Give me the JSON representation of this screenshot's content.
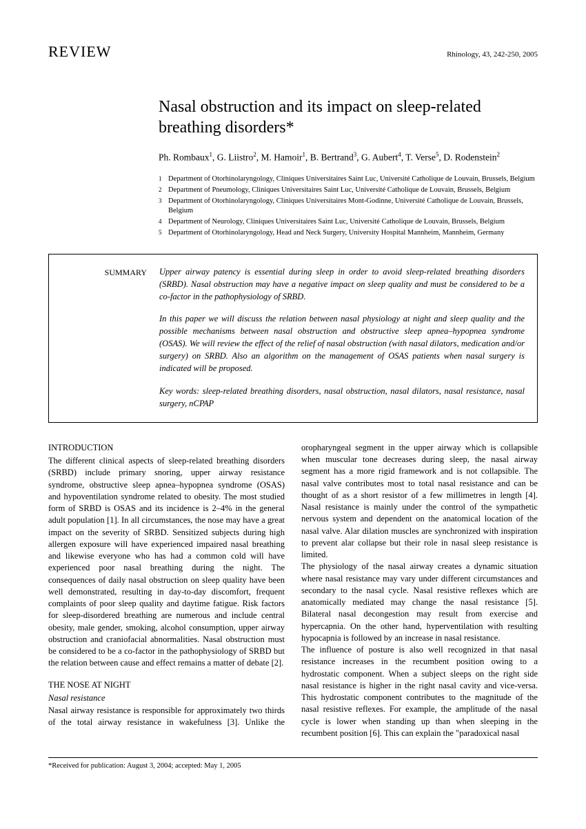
{
  "header": {
    "review_label": "REVIEW",
    "journal_ref": "Rhinology, 43, 242-250, 2005"
  },
  "title": "Nasal obstruction and its impact on sleep-related breathing disorders*",
  "authors_html": "Ph. Rombaux<sup>1</sup>, G. Liistro<sup>2</sup>, M. Hamoir<sup>1</sup>, B. Bertrand<sup>3</sup>, G. Aubert<sup>4</sup>, T. Verse<sup>5</sup>, D. Rodenstein<sup>2</sup>",
  "affiliations": [
    {
      "n": "1",
      "text": "Department of Otorhinolaryngology, Cliniques Universitaires Saint Luc, Université Catholique de Louvain, Brussels, Belgium"
    },
    {
      "n": "2",
      "text": "Department of Pneumology, Cliniques Universitaires Saint Luc, Université Catholique de Louvain, Brussels, Belgium"
    },
    {
      "n": "3",
      "text": "Department of Otorhinolaryngology, Cliniques Universitaires Mont-Godinne, Université Catholique de Louvain, Brussels, Belgium"
    },
    {
      "n": "4",
      "text": "Department of Neurology, Cliniques Universitaires Saint Luc, Université Catholique de Louvain, Brussels, Belgium"
    },
    {
      "n": "5",
      "text": "Department of Otorhinolaryngology, Head and Neck Surgery, University Hospital Mannheim, Mannheim, Germany"
    }
  ],
  "summary": {
    "label": "SUMMARY",
    "p1": "Upper airway patency is essential during sleep in order to avoid sleep-related breathing disorders (SRBD). Nasal obstruction may have a negative impact on sleep quality and must be considered to be a co-factor in the pathophysiology of SRBD.",
    "p2": "In this paper we will discuss the relation between nasal physiology at night and sleep quality and the possible mechanisms between nasal obstruction and obstructive sleep apnea–hypopnea syndrome (OSAS). We will review the effect of the relief of nasal obstruction (with nasal dilators, medication and/or surgery) on SRBD. Also an algorithm on the management of OSAS patients when nasal surgery is indicated will be proposed.",
    "keywords": "Key words: sleep-related breathing disorders, nasal obstruction, nasal dilators, nasal resistance, nasal surgery, nCPAP"
  },
  "sections": {
    "intro_head": "INTRODUCTION",
    "intro_body": "The different clinical aspects of sleep-related breathing disorders (SRBD) include primary snoring, upper airway resistance syndrome, obstructive sleep apnea–hypopnea syndrome (OSAS) and hypoventilation syndrome related to obesity. The most studied form of SRBD is OSAS and its incidence is 2–4% in the general adult population [1]. In all circumstances, the nose may have a great impact on the severity of SRBD. Sensitized subjects during high allergen exposure will have experienced impaired nasal breathing and likewise everyone who has had a common cold will have experienced poor nasal breathing during the night. The consequences of daily nasal obstruction on sleep quality have been well demonstrated, resulting in day-to-day discomfort, frequent complaints of poor sleep quality and daytime fatigue. Risk factors for sleep-disordered breathing are numerous and include central obesity, male gender, smoking, alcohol consumption, upper airway obstruction and craniofacial abnormalities. Nasal obstruction must be considered to be a co-factor in the pathophysiology of SRBD but the relation between cause and effect remains a matter of debate [2].",
    "nose_head": "THE NOSE AT NIGHT",
    "nasal_sub": "Nasal resistance",
    "nasal_body": "Nasal airway resistance is responsible for approximately two thirds of the total airway resistance in wakefulness [3]. Unlike the oropharyngeal segment in the upper airway which is collapsible when muscular tone decreases during sleep, the nasal airway segment has a more rigid framework and is not collapsible. The nasal valve contributes most to total nasal resistance and can be thought of as a short resistor of a few millimetres in length [4]. Nasal resistance is mainly under the control of the sympathetic nervous system and dependent on the anatomical location of the nasal valve. Alar dilation muscles are synchronized with inspiration to prevent alar collapse but their role in nasal sleep resistance is limited.",
    "phys_body": "The physiology of the nasal airway creates a dynamic situation where nasal resistance may vary under different circumstances and secondary to the nasal cycle. Nasal resistive reflexes which are anatomically mediated may change the nasal resistance [5]. Bilateral nasal decongestion may result from exercise and hypercapnia. On the other hand, hyperventilation with resulting hypocapnia is followed by an increase in nasal resistance.",
    "posture_body": "The influence of posture is also well recognized in that nasal resistance increases in the recumbent position owing to a hydrostatic component. When a subject sleeps on the right side nasal resistance is higher in the right nasal cavity and vice-versa. This hydrostatic component contributes to the magnitude of the nasal resistive reflexes. For example, the amplitude of the nasal cycle is lower when standing up than when sleeping in the recumbent position [6]. This can explain the \"paradoxical nasal"
  },
  "footnote": "*Received for publication: August 3, 2004; accepted: May 1, 2005"
}
